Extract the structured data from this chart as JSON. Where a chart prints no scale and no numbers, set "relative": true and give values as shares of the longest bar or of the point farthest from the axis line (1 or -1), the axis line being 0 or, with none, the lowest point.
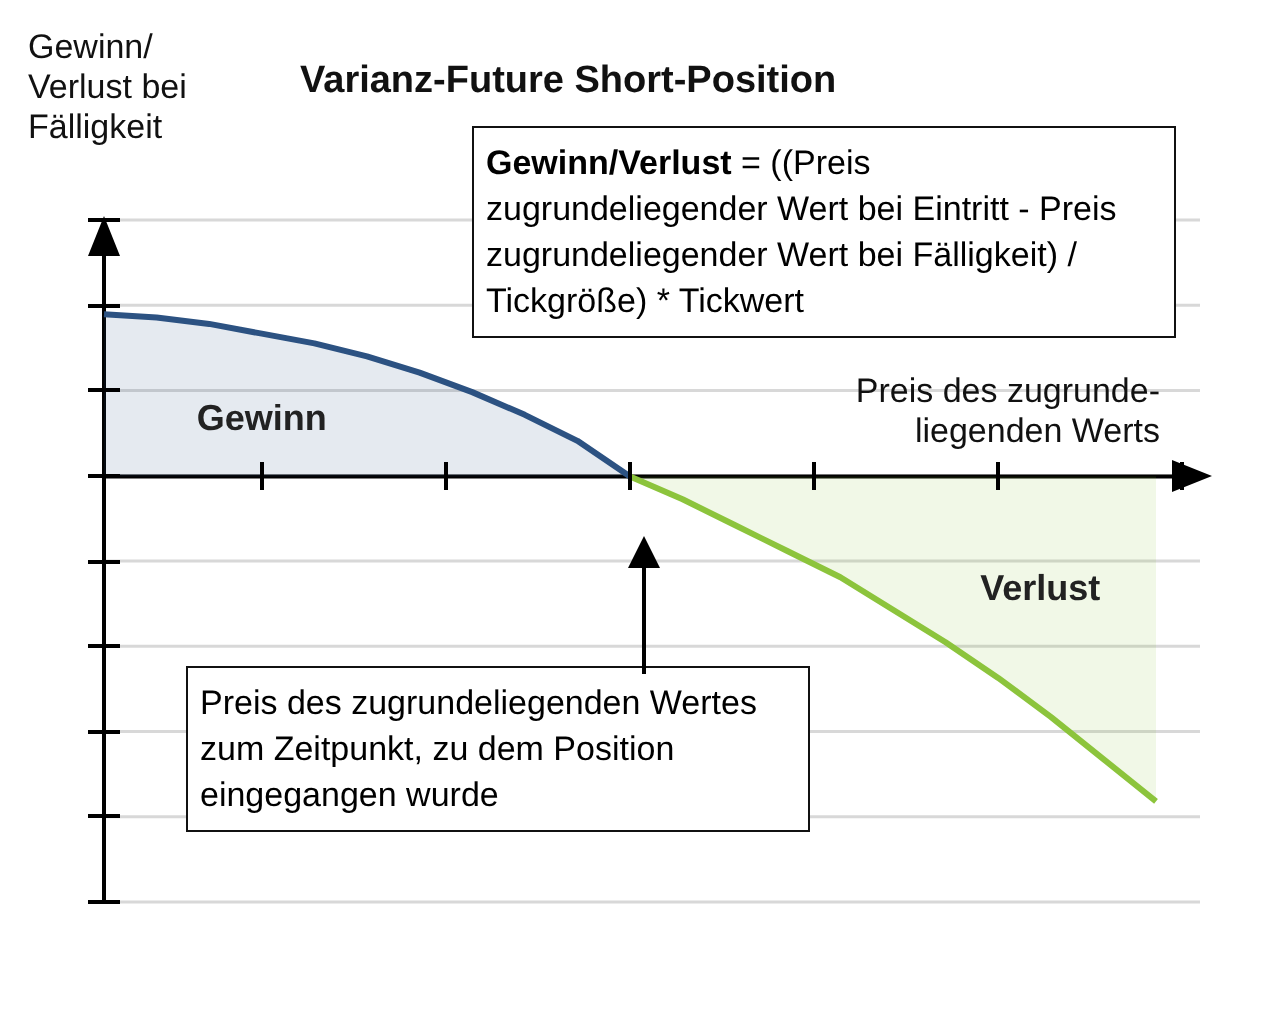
{
  "chart_data": {
    "type": "area",
    "title": "Varianz-Future Short-Position",
    "ylabel": "Gewinn/ Verlust bei Fälligkeit",
    "xlabel": "Preis des zugrunde-liegenden Werts",
    "relative": true,
    "grid": "y",
    "legend": false,
    "categories": [
      null,
      null,
      null,
      null,
      null,
      null,
      null,
      null,
      null,
      null,
      null,
      null,
      null,
      null,
      null,
      null,
      null,
      null,
      null,
      null,
      null
    ],
    "series": [
      {
        "name": "Gewinn",
        "color": "#2c5282",
        "values": [
          0.5,
          0.49,
          0.47,
          0.44,
          0.41,
          0.37,
          0.32,
          0.26,
          0.19,
          0.11,
          0,
          null,
          null,
          null,
          null,
          null,
          null,
          null,
          null,
          null,
          null
        ]
      },
      {
        "name": "Verlust",
        "color": "#8cc43c",
        "values": [
          null,
          null,
          null,
          null,
          null,
          null,
          null,
          null,
          null,
          null,
          0,
          -0.07,
          -0.15,
          -0.23,
          -0.31,
          -0.41,
          -0.51,
          -0.62,
          -0.74,
          -0.87,
          -1
        ]
      }
    ],
    "annotations": [
      "Gewinn/Verlust = ((Preis zugrundeliegender Wert bei Eintritt - Preis zugrundeliegender Wert bei Fälligkeit) / Tickgröße) * Tickwert",
      "Preis des zugrundeliegenden Wertes zum Zeitpunkt, zu dem Position eingegangen wurde"
    ]
  }
}
